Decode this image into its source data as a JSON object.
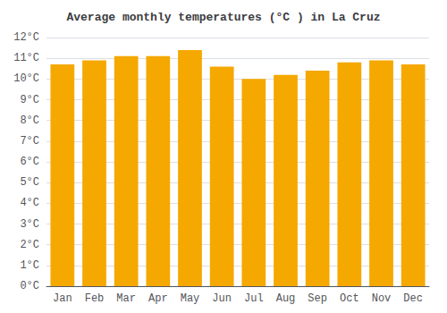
{
  "chart_data": {
    "type": "bar",
    "title": "Average monthly temperatures (°C ) in La Cruz",
    "categories": [
      "Jan",
      "Feb",
      "Mar",
      "Apr",
      "May",
      "Jun",
      "Jul",
      "Aug",
      "Sep",
      "Oct",
      "Nov",
      "Dec"
    ],
    "values": [
      10.7,
      10.9,
      11.1,
      11.1,
      11.4,
      10.6,
      10.0,
      10.2,
      10.4,
      10.8,
      10.9,
      10.7
    ],
    "color": "#F5A800",
    "ylim": [
      0,
      12
    ],
    "yticks": [
      {
        "value": 0,
        "label": "0°C"
      },
      {
        "value": 1,
        "label": "1°C"
      },
      {
        "value": 2,
        "label": "2°C"
      },
      {
        "value": 3,
        "label": "3°C"
      },
      {
        "value": 4,
        "label": "4°C"
      },
      {
        "value": 5,
        "label": "5°C"
      },
      {
        "value": 6,
        "label": "6°C"
      },
      {
        "value": 7,
        "label": "7°C"
      },
      {
        "value": 8,
        "label": "8°C"
      },
      {
        "value": 9,
        "label": "9°C"
      },
      {
        "value": 10,
        "label": "10°C"
      },
      {
        "value": 11,
        "label": "11°C"
      },
      {
        "value": 12,
        "label": "12°C"
      }
    ],
    "grid": true
  }
}
